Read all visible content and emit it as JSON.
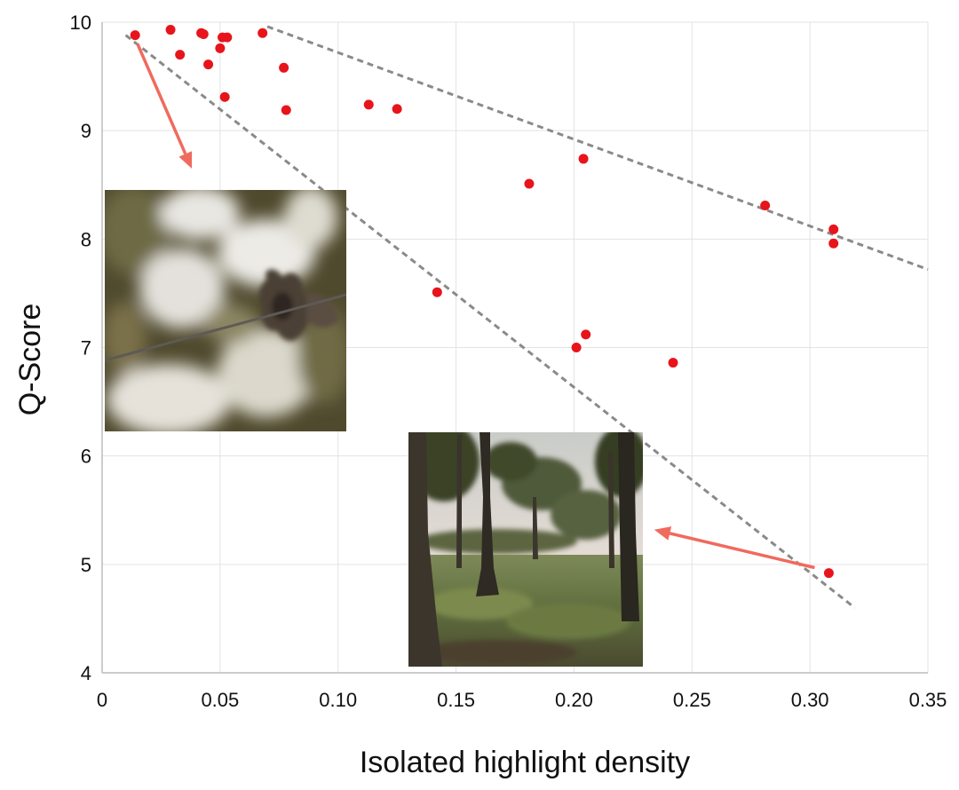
{
  "chart_data": {
    "type": "scatter",
    "title": "",
    "xlabel": "Isolated highlight density",
    "ylabel": "Q-Score",
    "xlim": [
      0,
      0.35
    ],
    "ylim": [
      4,
      10
    ],
    "x_ticks": [
      0,
      0.05,
      0.1,
      0.15,
      0.2,
      0.25,
      0.3,
      0.35
    ],
    "x_tick_labels": [
      "0",
      "0.05",
      "0.10",
      "0.15",
      "0.20",
      "0.25",
      "0.30",
      "0.35"
    ],
    "y_ticks": [
      4,
      5,
      6,
      7,
      8,
      9,
      10
    ],
    "y_tick_labels": [
      "4",
      "5",
      "6",
      "7",
      "8",
      "9",
      "10"
    ],
    "grid": true,
    "point_color": "#e8141b",
    "series": [
      {
        "x": [
          0.014,
          0.029,
          0.033,
          0.042,
          0.043,
          0.045,
          0.05,
          0.051,
          0.052,
          0.053,
          0.068,
          0.077,
          0.078,
          0.113,
          0.125,
          0.142,
          0.181,
          0.201,
          0.204,
          0.205,
          0.242,
          0.281,
          0.31,
          0.31,
          0.308
        ],
        "y": [
          9.88,
          9.93,
          9.7,
          9.9,
          9.89,
          9.61,
          9.76,
          9.86,
          9.31,
          9.86,
          9.9,
          9.58,
          9.19,
          9.24,
          9.2,
          7.51,
          8.51,
          7.0,
          8.74,
          7.12,
          6.86,
          8.31,
          8.09,
          7.96,
          4.92
        ]
      }
    ],
    "reference_lines": [
      {
        "style": "dashed",
        "color": "#8a8a8a",
        "x": [
          0.01,
          0.319
        ],
        "y": [
          9.88,
          4.6
        ]
      },
      {
        "style": "dashed",
        "color": "#8a8a8a",
        "x": [
          0.07,
          0.35
        ],
        "y": [
          9.96,
          7.72
        ]
      }
    ],
    "annotations": [
      {
        "kind": "arrow",
        "color": "#f06a5e",
        "from": [
          0.015,
          9.8
        ],
        "to": [
          0.038,
          8.65
        ]
      },
      {
        "kind": "arrow",
        "color": "#f06a5e",
        "from": [
          0.302,
          4.97
        ],
        "to": [
          0.234,
          5.32
        ]
      }
    ],
    "insets": [
      {
        "name": "blurred-fence-insulator-photo",
        "anchor": "near top-left point"
      },
      {
        "name": "forest-clearing-photo",
        "anchor": "near bottom-right point"
      }
    ]
  }
}
